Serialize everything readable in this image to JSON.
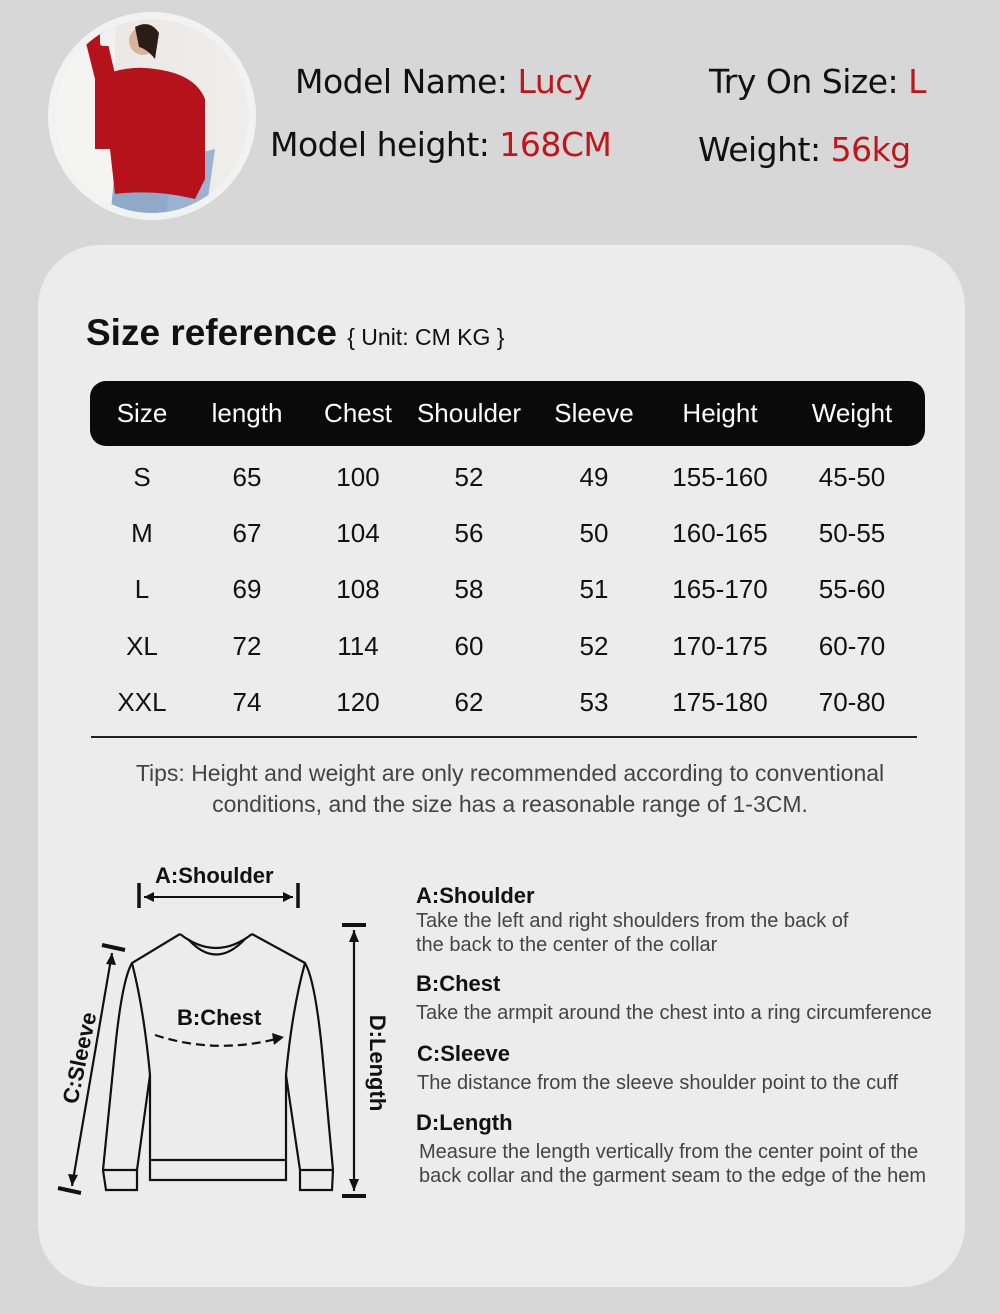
{
  "model": {
    "name_label": "Model Name:",
    "name": "Lucy",
    "height_label": "Model height:",
    "height": "168CM",
    "size_label": "Try On Size:",
    "size": "L",
    "weight_label": "Weight:",
    "weight": "56kg"
  },
  "colors": {
    "accent": "#c0161b",
    "header_bg": "#0a0a0a",
    "card_bg": "#ececec",
    "page_bg": "#d7d7d7"
  },
  "size_ref": {
    "title": "Size reference",
    "unit": "{ Unit: CM KG }"
  },
  "table": {
    "headers": [
      "Size",
      "length",
      "Chest",
      "Shoulder",
      "Sleeve",
      "Height",
      "Weight"
    ],
    "rows": [
      [
        "S",
        "65",
        "100",
        "52",
        "49",
        "155-160",
        "45-50"
      ],
      [
        "M",
        "67",
        "104",
        "56",
        "50",
        "160-165",
        "50-55"
      ],
      [
        "L",
        "69",
        "108",
        "58",
        "51",
        "165-170",
        "55-60"
      ],
      [
        "XL",
        "72",
        "114",
        "60",
        "52",
        "170-175",
        "60-70"
      ],
      [
        "XXL",
        "74",
        "120",
        "62",
        "53",
        "175-180",
        "70-80"
      ]
    ]
  },
  "tips": [
    "Tips: Height and weight are only recommended according to conventional",
    "conditions, and the size has a reasonable range of 1-3CM."
  ],
  "diagram": {
    "shoulder": "A:Shoulder",
    "chest": "B:Chest",
    "sleeve": "C:Sleeve",
    "length": "D:Length"
  },
  "descriptions": [
    {
      "title": "A:Shoulder",
      "lines": [
        "Take the left and right shoulders from the back of",
        "the back to the center of the collar"
      ]
    },
    {
      "title": "B:Chest",
      "lines": [
        "Take the armpit around the chest into a ring circumference"
      ]
    },
    {
      "title": "C:Sleeve",
      "lines": [
        "The distance from the sleeve shoulder point to the cuff"
      ]
    },
    {
      "title": "D:Length",
      "lines": [
        "Measure the length vertically from the center point of the",
        "back collar and the garment seam to the edge of the hem"
      ]
    }
  ]
}
